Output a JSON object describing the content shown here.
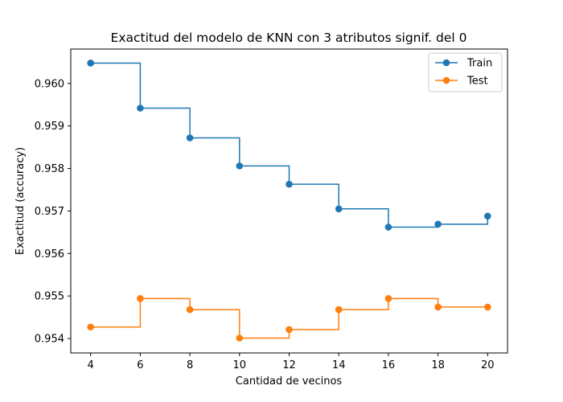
{
  "chart_data": {
    "type": "line",
    "drawstyle": "steps-post",
    "title": "Exactitud del modelo de KNN con 3 atributos signif. del 0",
    "xlabel": "Cantidad de vecinos",
    "ylabel": "Exactitud (accuracy)",
    "x": [
      4,
      6,
      8,
      10,
      12,
      14,
      16,
      18,
      20
    ],
    "xticks": [
      4,
      6,
      8,
      10,
      12,
      14,
      16,
      18,
      20
    ],
    "yticks": [
      0.954,
      0.955,
      0.956,
      0.957,
      0.958,
      0.959,
      0.96
    ],
    "ytick_labels": [
      "0.954",
      "0.955",
      "0.956",
      "0.957",
      "0.958",
      "0.959",
      "0.960"
    ],
    "xlim": [
      3.2,
      20.8
    ],
    "ylim": [
      0.95366,
      0.96081
    ],
    "grid": false,
    "legend_position": "top-right",
    "series": [
      {
        "name": "Train",
        "color": "#1f77b4",
        "values": [
          0.96048,
          0.95942,
          0.95872,
          0.95806,
          0.95763,
          0.95705,
          0.95662,
          0.95669,
          0.95688
        ]
      },
      {
        "name": "Test",
        "color": "#ff7f0e",
        "values": [
          0.95427,
          0.95494,
          0.95468,
          0.95401,
          0.95421,
          0.95468,
          0.95494,
          0.95474,
          0.95474
        ]
      }
    ]
  }
}
